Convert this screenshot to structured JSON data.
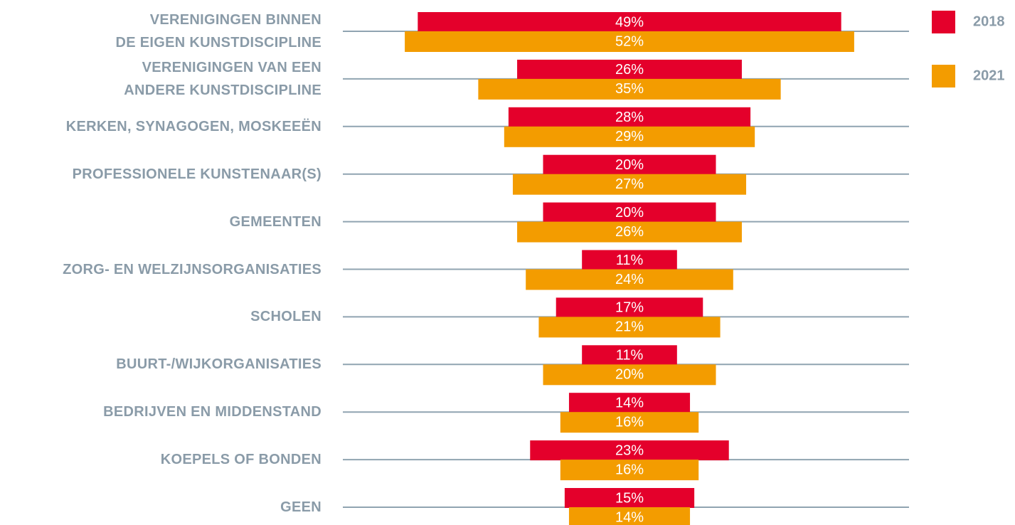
{
  "chart_data": {
    "type": "bar",
    "categories": [
      "VERENIGINGEN BINNEN\nDE EIGEN KUNSTDISCIPLINE",
      "VERENIGINGEN VAN EEN\nANDERE KUNSTDISCIPLINE",
      "KERKEN, SYNAGOGEN, MOSKEEËN",
      "PROFESSIONELE KUNSTENAAR(S)",
      "GEMEENTEN",
      "ZORG- EN WELZIJNSORGANISATIES",
      "SCHOLEN",
      "BUURT-/WIJKORGANISATIES",
      "BEDRIJVEN EN MIDDENSTAND",
      "KOEPELS OF BONDEN",
      "GEEN"
    ],
    "series": [
      {
        "name": "2018",
        "color": "#e4002b",
        "values": [
          49,
          26,
          28,
          20,
          20,
          11,
          17,
          11,
          14,
          23,
          15
        ],
        "value_labels": [
          "49%",
          "26%",
          "28%",
          "20%",
          "20%",
          "11%",
          "17%",
          "11%",
          "14%",
          "23%",
          "15%"
        ]
      },
      {
        "name": "2021",
        "color": "#f39c00",
        "values": [
          52,
          35,
          29,
          27,
          26,
          24,
          21,
          20,
          16,
          16,
          14
        ],
        "value_labels": [
          "52%",
          "35%",
          "29%",
          "27%",
          "26%",
          "24%",
          "21%",
          "20%",
          "16%",
          "16%",
          "14%"
        ]
      }
    ],
    "legend": "top-right"
  }
}
